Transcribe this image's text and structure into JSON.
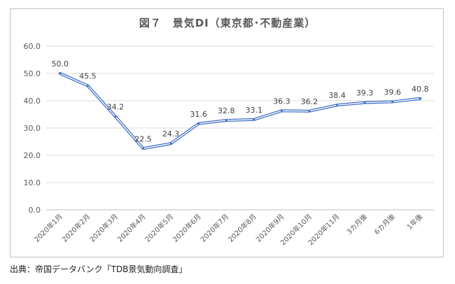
{
  "chart_data": {
    "type": "line",
    "title": "図７　景気DI（東京都･不動産業）",
    "categories": [
      "2020年1月",
      "2020年2月",
      "2020年3月",
      "2020年4月",
      "2020年5月",
      "2020年6月",
      "2020年7月",
      "2020年8月",
      "2020年9月",
      "2020年10月",
      "2020年11月",
      "3カ月後",
      "6カ月後",
      "1年後"
    ],
    "series": [
      {
        "values": [
          50.0,
          45.5,
          34.2,
          22.5,
          24.3,
          31.6,
          32.8,
          33.1,
          36.3,
          36.2,
          38.4,
          39.3,
          39.6,
          40.8
        ]
      }
    ],
    "data_labels": [
      "50.0",
      "45.5",
      "34.2",
      "22.5",
      "24.3",
      "31.6",
      "32.8",
      "33.1",
      "36.3",
      "36.2",
      "38.4",
      "39.3",
      "39.6",
      "40.8"
    ],
    "yticks": [
      "0.0",
      "10.0",
      "20.0",
      "30.0",
      "40.0",
      "50.0",
      "60.0"
    ],
    "ylim": [
      0,
      60
    ],
    "grid": true,
    "legend": "none",
    "line_color": "#4472c4"
  },
  "source": "出典：帝国データバンク「TDB景気動向調査」"
}
